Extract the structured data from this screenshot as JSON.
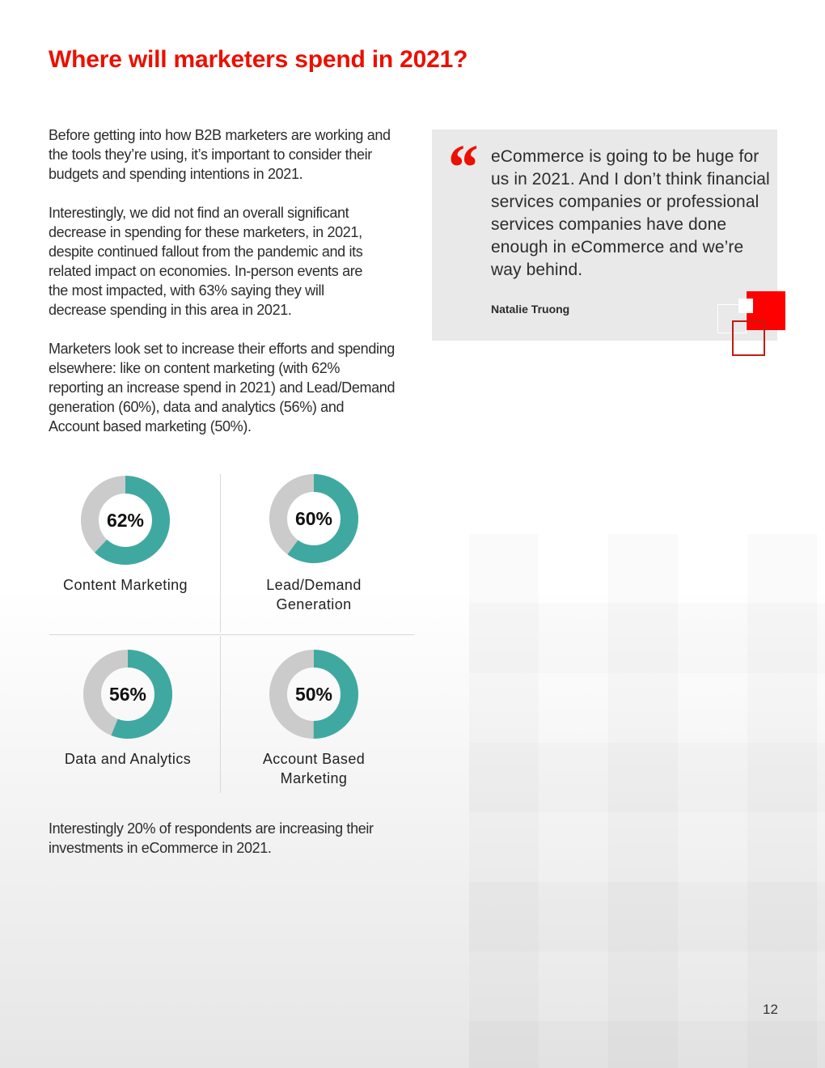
{
  "title": "Where will marketers spend in 2021?",
  "paragraphs": [
    "Before getting into how B2B marketers are working and the tools they’re using, it’s important to consider their budgets and spending intentions in 2021.",
    "Interestingly, we did not find an overall significant decrease in spending for these marketers, in 2021, despite continued fallout from the pandemic and its related impact on economies. In-person events are the most impacted, with 63% saying they will decrease spending in this area in 2021.",
    "Marketers look set to increase their efforts and spending elsewhere: like on content marketing (with 62% reporting an increase spend in 2021) and Lead/Demand generation (60%), data and analytics (56%)  and Account based marketing (50%)."
  ],
  "quote": {
    "mark": "“",
    "text": "eCommerce is going to be huge for us in 2021. And I don’t think financial services companies or professional services companies have done enough in eCommerce and we’re way behind.",
    "author": "Natalie Truong"
  },
  "chart_data": [
    {
      "type": "pie",
      "variant": "donut",
      "value": 62,
      "label_text": "62%",
      "label": "Content Marketing"
    },
    {
      "type": "pie",
      "variant": "donut",
      "value": 60,
      "label_text": "60%",
      "label": "Lead/Demand Generation"
    },
    {
      "type": "pie",
      "variant": "donut",
      "value": 56,
      "label_text": "56%",
      "label": "Data and Analytics"
    },
    {
      "type": "pie",
      "variant": "donut",
      "value": 50,
      "label_text": "50%",
      "label": "Account Based Marketing"
    }
  ],
  "closing": "Interestingly 20% of respondents are increasing their investments in eCommerce in 2021.",
  "page_number": "12",
  "colors": {
    "accent": "#eb1000",
    "donut_fill": "#3fa9a1",
    "donut_rest": "#cbcbcb",
    "quote_bg": "#e9e9e9"
  }
}
